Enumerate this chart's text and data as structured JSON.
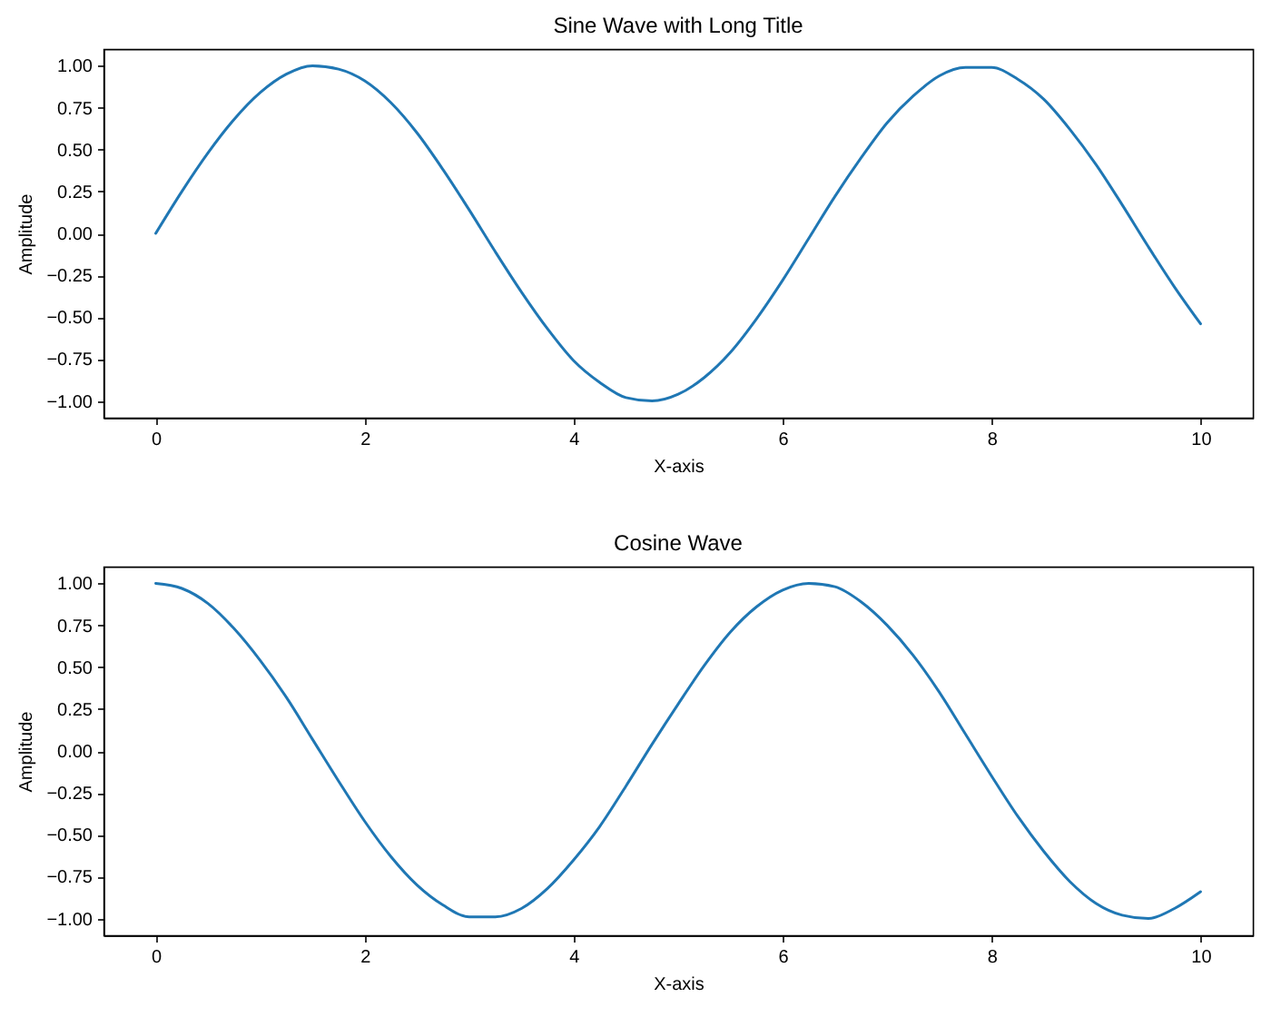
{
  "chart_data": [
    {
      "type": "line",
      "title": "Sine Wave with Long Title",
      "xlabel": "X-axis",
      "ylabel": "Amplitude",
      "x": [
        0,
        0.25,
        0.5,
        0.75,
        1,
        1.25,
        1.5,
        1.75,
        2,
        2.25,
        2.5,
        2.75,
        3,
        3.25,
        3.5,
        3.75,
        4,
        4.25,
        4.5,
        4.75,
        5,
        5.25,
        5.5,
        5.75,
        6,
        6.25,
        6.5,
        6.75,
        7,
        7.25,
        7.5,
        7.75,
        8,
        8.25,
        8.5,
        8.75,
        9,
        9.25,
        9.5,
        9.75,
        10
      ],
      "series": [
        {
          "color": "#1f77b4",
          "values": [
            0,
            0.25,
            0.48,
            0.68,
            0.84,
            0.95,
            1,
            0.98,
            0.91,
            0.78,
            0.6,
            0.38,
            0.14,
            -0.11,
            -0.35,
            -0.57,
            -0.76,
            -0.89,
            -0.98,
            -1,
            -0.96,
            -0.86,
            -0.71,
            -0.51,
            -0.28,
            -0.03,
            0.22,
            0.45,
            0.66,
            0.82,
            0.94,
            0.99,
            0.99,
            0.92,
            0.8,
            0.62,
            0.41,
            0.17,
            -0.08,
            -0.32,
            -0.54
          ]
        }
      ],
      "xlim": [
        -0.5,
        10.5
      ],
      "xticks": [
        0,
        2,
        4,
        6,
        8,
        10
      ],
      "ylim": [
        -1.1,
        1.1
      ],
      "yticks": [
        {
          "value": -1,
          "label": "−1.00"
        },
        {
          "value": -0.75,
          "label": "−0.75"
        },
        {
          "value": -0.5,
          "label": "−0.50"
        },
        {
          "value": -0.25,
          "label": "−0.25"
        },
        {
          "value": 0,
          "label": "0.00"
        },
        {
          "value": 0.25,
          "label": "0.25"
        },
        {
          "value": 0.5,
          "label": "0.50"
        },
        {
          "value": 0.75,
          "label": "0.75"
        },
        {
          "value": 1,
          "label": "1.00"
        }
      ]
    },
    {
      "type": "line",
      "title": "Cosine Wave",
      "xlabel": "X-axis",
      "ylabel": "Amplitude",
      "x": [
        0,
        0.25,
        0.5,
        0.75,
        1,
        1.25,
        1.5,
        1.75,
        2,
        2.25,
        2.5,
        2.75,
        3,
        3.25,
        3.5,
        3.75,
        4,
        4.25,
        4.5,
        4.75,
        5,
        5.25,
        5.5,
        5.75,
        6,
        6.25,
        6.5,
        6.75,
        7,
        7.25,
        7.5,
        7.75,
        8,
        8.25,
        8.5,
        8.75,
        9,
        9.25,
        9.5,
        9.75,
        10
      ],
      "series": [
        {
          "color": "#1f77b4",
          "values": [
            1,
            0.97,
            0.88,
            0.73,
            0.54,
            0.32,
            0.07,
            -0.18,
            -0.42,
            -0.63,
            -0.8,
            -0.92,
            -0.99,
            -0.99,
            -0.94,
            -0.82,
            -0.65,
            -0.45,
            -0.21,
            0.04,
            0.28,
            0.51,
            0.71,
            0.86,
            0.96,
            1,
            0.98,
            0.89,
            0.75,
            0.57,
            0.35,
            0.1,
            -0.15,
            -0.39,
            -0.6,
            -0.78,
            -0.91,
            -0.98,
            -1,
            -0.94,
            -0.84
          ]
        }
      ],
      "xlim": [
        -0.5,
        10.5
      ],
      "xticks": [
        0,
        2,
        4,
        6,
        8,
        10
      ],
      "ylim": [
        -1.1,
        1.1
      ],
      "yticks": [
        {
          "value": -1,
          "label": "−1.00"
        },
        {
          "value": -0.75,
          "label": "−0.75"
        },
        {
          "value": -0.5,
          "label": "−0.50"
        },
        {
          "value": -0.25,
          "label": "−0.25"
        },
        {
          "value": 0,
          "label": "0.00"
        },
        {
          "value": 0.25,
          "label": "0.25"
        },
        {
          "value": 0.5,
          "label": "0.50"
        },
        {
          "value": 0.75,
          "label": "0.75"
        },
        {
          "value": 1,
          "label": "1.00"
        }
      ]
    }
  ]
}
